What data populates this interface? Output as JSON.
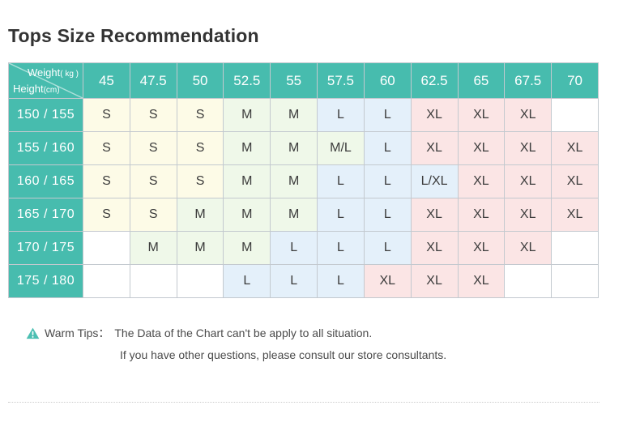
{
  "page_title": "Tops Size Recommendation",
  "chart_data": {
    "type": "table",
    "title": "Tops Size Recommendation",
    "x_axis_label": "Weight",
    "x_axis_unit": "kg",
    "y_axis_label": "Height",
    "y_axis_unit": "cm",
    "corner": {
      "top_label": "Weight",
      "top_unit": "( kg )",
      "bottom_label": "Height",
      "bottom_unit": "(cm)"
    },
    "weight_columns_kg": [
      "45",
      "47.5",
      "50",
      "52.5",
      "55",
      "57.5",
      "60",
      "62.5",
      "65",
      "67.5",
      "70"
    ],
    "rows": [
      {
        "height": "150 / 155",
        "sizes": [
          "S",
          "S",
          "S",
          "M",
          "M",
          "L",
          "L",
          "XL",
          "XL",
          "XL",
          ""
        ]
      },
      {
        "height": "155 / 160",
        "sizes": [
          "S",
          "S",
          "S",
          "M",
          "M",
          "M/L",
          "L",
          "XL",
          "XL",
          "XL",
          "XL"
        ]
      },
      {
        "height": "160 / 165",
        "sizes": [
          "S",
          "S",
          "S",
          "M",
          "M",
          "L",
          "L",
          "L/XL",
          "XL",
          "XL",
          "XL"
        ]
      },
      {
        "height": "165 / 170",
        "sizes": [
          "S",
          "S",
          "M",
          "M",
          "M",
          "L",
          "L",
          "XL",
          "XL",
          "XL",
          "XL"
        ]
      },
      {
        "height": "170 / 175",
        "sizes": [
          "",
          "M",
          "M",
          "M",
          "L",
          "L",
          "L",
          "XL",
          "XL",
          "XL",
          ""
        ]
      },
      {
        "height": "175 / 180",
        "sizes": [
          "",
          "",
          "",
          "L",
          "L",
          "L",
          "XL",
          "XL",
          "XL",
          "",
          ""
        ]
      }
    ],
    "size_colors": {
      "S": "#fdfbe7",
      "M": "#eff8e9",
      "M/L": "#eff8e9",
      "L": "#e4f0fa",
      "L/XL": "#e4f0fa",
      "XL": "#fbe5e5",
      "": "#ffffff"
    },
    "header_bg": "#47bcae",
    "header_text": "#ffffff",
    "grid_color": "#c3c9cf"
  },
  "tips": {
    "icon_color": "#4cbfb2",
    "label": "Warm Tips：",
    "line1": "The Data of the Chart can't be apply to all situation.",
    "line2": "If you have other questions, please consult our store consultants."
  }
}
